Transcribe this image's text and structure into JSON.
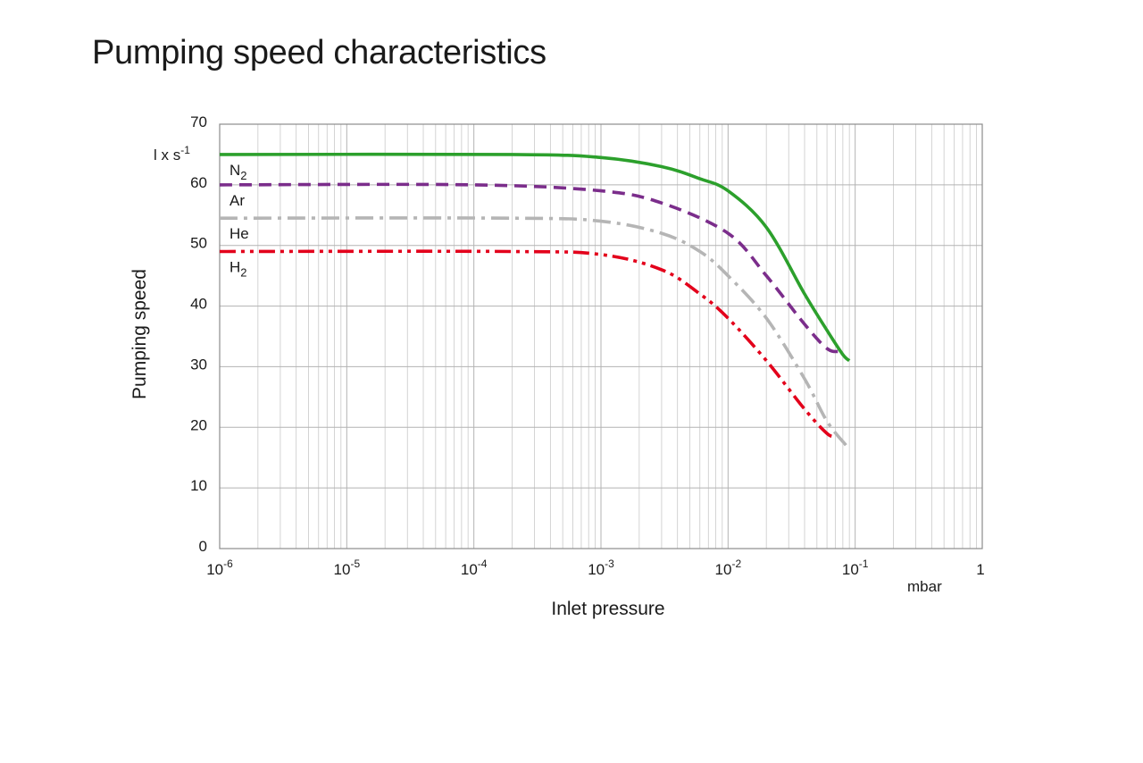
{
  "page": {
    "title": "Pumping speed characteristics"
  },
  "chart_data": {
    "type": "line",
    "title": "Pumping speed characteristics",
    "xlabel": "Inlet pressure",
    "xunit": "mbar",
    "ylabel": "Pumping speed",
    "yunit": {
      "base": "l x s",
      "exp": "-1"
    },
    "xscale": "log",
    "xlim": [
      1e-06,
      1
    ],
    "ylim": [
      0,
      70
    ],
    "grid": true,
    "x_ticks": [
      {
        "base": "10",
        "exp": "-6",
        "value": 1e-06
      },
      {
        "base": "10",
        "exp": "-5",
        "value": 1e-05
      },
      {
        "base": "10",
        "exp": "-4",
        "value": 0.0001
      },
      {
        "base": "10",
        "exp": "-3",
        "value": 0.001
      },
      {
        "base": "10",
        "exp": "-2",
        "value": 0.01
      },
      {
        "base": "10",
        "exp": "-1",
        "value": 0.1
      },
      {
        "base": "1",
        "exp": "",
        "value": 1
      }
    ],
    "y_ticks": [
      "0",
      "10",
      "20",
      "30",
      "40",
      "50",
      "60",
      "70"
    ],
    "series": [
      {
        "name": "N2",
        "label_base": "N",
        "label_sub": "2",
        "color": "#2ca02c",
        "style": "solid",
        "x": [
          1e-06,
          0.0002,
          0.001,
          0.003,
          0.006,
          0.01,
          0.02,
          0.04,
          0.06,
          0.08,
          0.09
        ],
        "y": [
          65,
          65,
          64.5,
          63,
          61,
          59,
          53,
          42,
          36,
          32,
          31
        ]
      },
      {
        "name": "Ar",
        "label_base": "Ar",
        "label_sub": "",
        "color": "#7b2d8b",
        "style": "dash",
        "x": [
          1e-06,
          0.0001,
          0.001,
          0.003,
          0.01,
          0.02,
          0.04,
          0.06,
          0.075
        ],
        "y": [
          60,
          60,
          59,
          57,
          52,
          45,
          37,
          33,
          32.5
        ]
      },
      {
        "name": "He",
        "label_base": "He",
        "label_sub": "",
        "color": "#b5b5b5",
        "style": "dashdot",
        "x": [
          1e-06,
          0.0002,
          0.001,
          0.003,
          0.006,
          0.01,
          0.02,
          0.04,
          0.06,
          0.085
        ],
        "y": [
          54.5,
          54.5,
          54,
          52,
          49,
          45,
          38,
          28,
          21,
          17
        ]
      },
      {
        "name": "H2",
        "label_base": "H",
        "label_sub": "2",
        "color": "#e3001b",
        "style": "dashdotdot",
        "x": [
          1e-06,
          0.0002,
          0.001,
          0.003,
          0.006,
          0.01,
          0.02,
          0.04,
          0.06,
          0.07
        ],
        "y": [
          49,
          49,
          48.5,
          46,
          42,
          38,
          31,
          23,
          19,
          18.5
        ]
      }
    ]
  }
}
